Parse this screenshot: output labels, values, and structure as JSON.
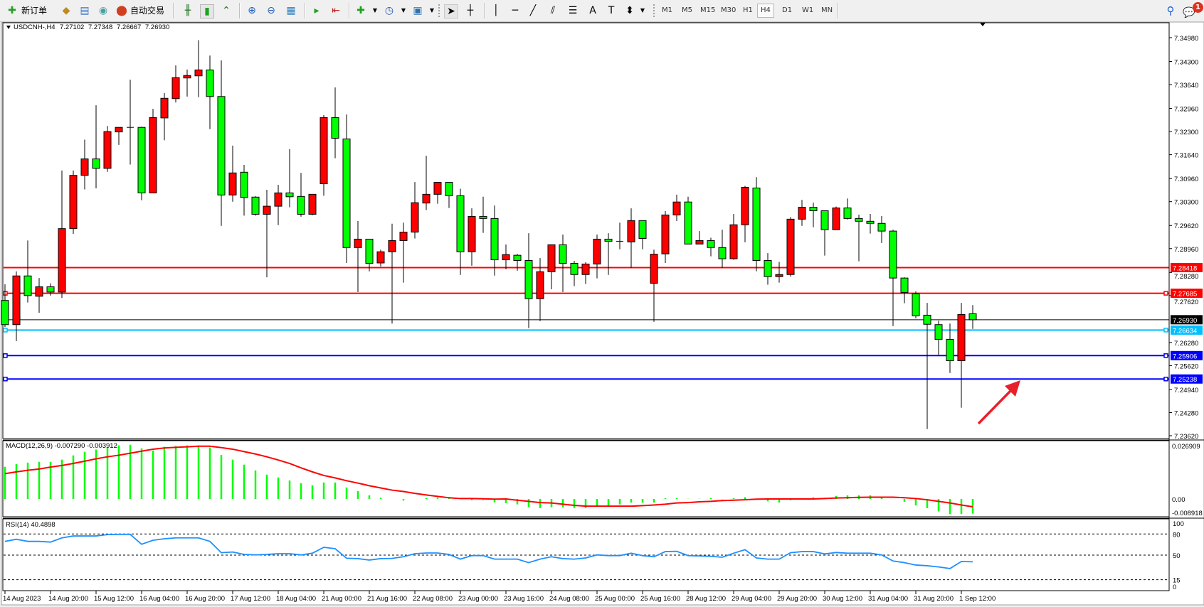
{
  "toolbar": {
    "new_order": "新订单",
    "auto_trading": "自动交易",
    "timeframes": [
      "M1",
      "M5",
      "M15",
      "M30",
      "H1",
      "H4",
      "D1",
      "W1",
      "MN"
    ],
    "active_timeframe": "H4",
    "notification_count": "1",
    "icons": [
      "new-order-icon",
      "market-watch-icon",
      "navigator-icon",
      "signals-icon",
      "auto-trading-icon",
      "bar-chart-icon",
      "candlestick-icon",
      "line-chart-icon",
      "zoom-in-icon",
      "zoom-out-icon",
      "tile-windows-icon",
      "auto-scroll-icon",
      "chart-shift-icon",
      "indicators-icon",
      "periods-icon",
      "templates-icon",
      "cursor-icon",
      "crosshair-icon",
      "vertical-line-icon",
      "horizontal-line-icon",
      "trendline-icon",
      "equidistant-channel-icon",
      "fibonacci-icon",
      "text-icon",
      "text-label-icon",
      "arrows-icon",
      "search-icon",
      "notification-icon"
    ]
  },
  "chart": {
    "symbol": "USDCNH-,H4",
    "open": "7.27102",
    "high": "7.27348",
    "low": "7.26667",
    "close": "7.26930"
  },
  "chart_data": {
    "type": "candlestick",
    "colors": {
      "bull": "#ff0000",
      "bear": "#00ff00",
      "wick": "#000000",
      "macd_histogram": "#00ff00",
      "macd_signal": "#ff0000",
      "rsi": "#1e90ff",
      "arrow": "#e8202a"
    },
    "price_axis": {
      "max": 7.3498,
      "min": 7.2362,
      "ticks": [
        "7.34980",
        "7.34300",
        "7.33640",
        "7.32960",
        "7.32300",
        "7.31640",
        "7.30960",
        "7.30300",
        "7.29620",
        "7.28960",
        "7.28280",
        "7.27620",
        "7.26280",
        "7.25620",
        "7.24940",
        "7.24280",
        "7.23620"
      ]
    },
    "time_axis_labels": [
      "14 Aug 2023",
      "14 Aug 20:00",
      "15 Aug 12:00",
      "16 Aug 04:00",
      "16 Aug 20:00",
      "17 Aug 12:00",
      "18 Aug 04:00",
      "21 Aug 00:00",
      "21 Aug 16:00",
      "22 Aug 08:00",
      "23 Aug 00:00",
      "23 Aug 16:00",
      "24 Aug 08:00",
      "25 Aug 00:00",
      "25 Aug 16:00",
      "28 Aug 12:00",
      "29 Aug 04:00",
      "29 Aug 20:00",
      "30 Aug 12:00",
      "31 Aug 04:00",
      "31 Aug 20:00",
      "1 Sep 12:00"
    ],
    "horizontal_lines": [
      {
        "price": "7.28418",
        "color": "#ff0000",
        "label_color": "#ffffff"
      },
      {
        "price": "7.27685",
        "color": "#ff0000",
        "label_color": "#ffffff"
      },
      {
        "price": "7.26930",
        "color": "#000000",
        "label_color": "#ffffff"
      },
      {
        "price": "7.26634",
        "color": "#00bfff",
        "label_color": "#ffffff"
      },
      {
        "price": "7.25906",
        "color": "#0000ff",
        "label_color": "#ffffff"
      },
      {
        "price": "7.25238",
        "color": "#0000ff",
        "label_color": "#ffffff"
      }
    ],
    "candles_ohlc": [
      [
        7.2748,
        7.2794,
        7.2672,
        7.2679
      ],
      [
        7.2679,
        7.2831,
        7.2632,
        7.2818
      ],
      [
        7.2818,
        7.2919,
        7.2742,
        7.2762
      ],
      [
        7.276,
        7.2812,
        7.2713,
        7.2787
      ],
      [
        7.2787,
        7.2797,
        7.2762,
        7.2772
      ],
      [
        7.2772,
        7.3119,
        7.2755,
        7.2953
      ],
      [
        7.2953,
        7.3119,
        7.2938,
        7.3105
      ],
      [
        7.3105,
        7.3207,
        7.3065,
        7.3152
      ],
      [
        7.3152,
        7.3305,
        7.3068,
        7.3125
      ],
      [
        7.3125,
        7.3246,
        7.3115,
        7.323
      ],
      [
        7.3229,
        7.3242,
        7.3192,
        7.3242
      ],
      [
        7.3242,
        7.3378,
        7.3136,
        7.3242
      ],
      [
        7.3242,
        7.3244,
        7.3034,
        7.3055
      ],
      [
        7.3055,
        7.3295,
        7.3055,
        7.327
      ],
      [
        7.3269,
        7.334,
        7.3205,
        7.3325
      ],
      [
        7.3324,
        7.3419,
        7.3313,
        7.3384
      ],
      [
        7.3383,
        7.3407,
        7.333,
        7.339
      ],
      [
        7.3389,
        7.3491,
        7.3328,
        7.3406
      ],
      [
        7.3406,
        7.3447,
        7.3237,
        7.333
      ],
      [
        7.333,
        7.3433,
        7.2961,
        7.3049
      ],
      [
        7.3049,
        7.319,
        7.303,
        7.3112
      ],
      [
        7.3114,
        7.3135,
        7.299,
        7.3042
      ],
      [
        7.3043,
        7.3046,
        7.299,
        7.2994
      ],
      [
        7.2994,
        7.3064,
        7.2814,
        7.3017
      ],
      [
        7.3017,
        7.3078,
        7.2963,
        7.3055
      ],
      [
        7.3055,
        7.318,
        7.3014,
        7.3044
      ],
      [
        7.3045,
        7.3112,
        7.2987,
        7.2994
      ],
      [
        7.2994,
        7.3051,
        7.2991,
        7.3051
      ],
      [
        7.3081,
        7.3277,
        7.3047,
        7.327
      ],
      [
        7.327,
        7.3356,
        7.3154,
        7.3211
      ],
      [
        7.3209,
        7.3279,
        7.2855,
        7.2899
      ],
      [
        7.2899,
        7.2975,
        7.2772,
        7.2923
      ],
      [
        7.2923,
        7.2923,
        7.2831,
        7.2854
      ],
      [
        7.2855,
        7.2893,
        7.2845,
        7.2887
      ],
      [
        7.2887,
        7.2967,
        7.2682,
        7.2919
      ],
      [
        7.2919,
        7.297,
        7.2799,
        7.2943
      ],
      [
        7.2943,
        7.3086,
        7.2925,
        7.3027
      ],
      [
        7.3026,
        7.3161,
        7.3006,
        7.3051
      ],
      [
        7.3051,
        7.3085,
        7.3024,
        7.3085
      ],
      [
        7.3085,
        7.3085,
        7.3012,
        7.3047
      ],
      [
        7.3047,
        7.3067,
        7.2821,
        7.2887
      ],
      [
        7.2887,
        7.3011,
        7.2847,
        7.2988
      ],
      [
        7.2988,
        7.3044,
        7.2941,
        7.2982
      ],
      [
        7.2982,
        7.3019,
        7.2819,
        7.2864
      ],
      [
        7.2864,
        7.2908,
        7.2837,
        7.2879
      ],
      [
        7.2877,
        7.2881,
        7.2833,
        7.2862
      ],
      [
        7.2862,
        7.294,
        7.2669,
        7.2753
      ],
      [
        7.2753,
        7.2869,
        7.2689,
        7.283
      ],
      [
        7.283,
        7.2907,
        7.278,
        7.2907
      ],
      [
        7.2907,
        7.2936,
        7.2772,
        7.2854
      ],
      [
        7.2854,
        7.2861,
        7.2789,
        7.2822
      ],
      [
        7.2822,
        7.2857,
        7.2795,
        7.2852
      ],
      [
        7.2852,
        7.2936,
        7.2811,
        7.2923
      ],
      [
        7.2923,
        7.294,
        7.2821,
        7.2917
      ],
      [
        7.2917,
        7.297,
        7.2894,
        7.2917
      ],
      [
        7.2915,
        7.3011,
        7.2841,
        7.2976
      ],
      [
        7.2976,
        7.2976,
        7.2894,
        7.2925
      ],
      [
        7.2797,
        7.2893,
        7.2687,
        7.288
      ],
      [
        7.2881,
        7.3003,
        7.2855,
        7.2992
      ],
      [
        7.2992,
        7.305,
        7.2975,
        7.3029
      ],
      [
        7.3029,
        7.3044,
        7.2909,
        7.2909
      ],
      [
        7.2909,
        7.2946,
        7.2909,
        7.2919
      ],
      [
        7.2919,
        7.2927,
        7.2874,
        7.2899
      ],
      [
        7.2899,
        7.295,
        7.2841,
        7.2867
      ],
      [
        7.2867,
        7.2995,
        7.2864,
        7.2964
      ],
      [
        7.2964,
        7.3075,
        7.2914,
        7.3071
      ],
      [
        7.3069,
        7.31,
        7.2831,
        7.2862
      ],
      [
        7.2862,
        7.2883,
        7.2793,
        7.2816
      ],
      [
        7.2816,
        7.2858,
        7.2799,
        7.2822
      ],
      [
        7.2822,
        7.2986,
        7.2816,
        7.298
      ],
      [
        7.298,
        7.3035,
        7.2961,
        7.3014
      ],
      [
        7.3014,
        7.3027,
        7.2957,
        7.3004
      ],
      [
        7.3004,
        7.3004,
        7.2876,
        7.295
      ],
      [
        7.295,
        7.3016,
        7.295,
        7.3012
      ],
      [
        7.3012,
        7.3039,
        7.2979,
        7.2982
      ],
      [
        7.2982,
        7.2993,
        7.286,
        7.2974
      ],
      [
        7.2974,
        7.2995,
        7.2939,
        7.2968
      ],
      [
        7.2968,
        7.2989,
        7.2912,
        7.2946
      ],
      [
        7.2946,
        7.295,
        7.2675,
        7.2812
      ],
      [
        7.2812,
        7.2814,
        7.274,
        7.2771
      ],
      [
        7.2767,
        7.2774,
        7.2697,
        7.2704
      ],
      [
        7.2706,
        7.2741,
        7.2381,
        7.268
      ],
      [
        7.2679,
        7.269,
        7.2593,
        7.2637
      ],
      [
        7.2637,
        7.2682,
        7.2541,
        7.2576
      ],
      [
        7.2576,
        7.2741,
        7.2442,
        7.2708
      ],
      [
        7.27102,
        7.27348,
        7.26667,
        7.2693
      ]
    ],
    "macd": {
      "label": "MACD(12,26,9) -0.007290 -0.003912",
      "max": 0.026909,
      "min": -0.008918,
      "axis_labels": [
        "0.026909",
        "0.00",
        "-0.008918"
      ],
      "histogram": [
        0.016,
        0.0174,
        0.0181,
        0.0185,
        0.0185,
        0.0196,
        0.0217,
        0.0235,
        0.0246,
        0.0258,
        0.0267,
        0.027,
        0.0252,
        0.0241,
        0.026,
        0.0264,
        0.0267,
        0.0267,
        0.0256,
        0.0219,
        0.0196,
        0.0171,
        0.0142,
        0.0121,
        0.0107,
        0.0092,
        0.0078,
        0.0068,
        0.0082,
        0.0082,
        0.0057,
        0.0039,
        0.0018,
        0.0006,
        0.0,
        -0.0008,
        0.0,
        0.0004,
        0.0007,
        0.0004,
        0.0004,
        -0.0005,
        -0.0005,
        -0.0017,
        -0.0021,
        -0.0027,
        -0.0041,
        -0.0045,
        -0.0041,
        -0.0041,
        -0.0045,
        -0.0045,
        -0.0033,
        -0.0033,
        -0.0027,
        -0.0018,
        -0.0018,
        -0.0018,
        0.0004,
        0.0004,
        0.0001,
        0.0001,
        0.0004,
        -0.0001,
        0.0004,
        0.0009,
        0.0,
        -0.0012,
        -0.0018,
        -0.0006,
        0.0,
        0.0008,
        0.0006,
        0.0015,
        0.0018,
        0.0018,
        0.0018,
        0.0012,
        0.0,
        -0.0014,
        -0.0032,
        -0.0046,
        -0.0062,
        -0.0075,
        -0.0075,
        -0.0073
      ],
      "signal": [
        0.0126,
        0.0135,
        0.0143,
        0.0149,
        0.0159,
        0.0167,
        0.0177,
        0.0188,
        0.02,
        0.021,
        0.0218,
        0.0228,
        0.0238,
        0.0248,
        0.0254,
        0.0257,
        0.026,
        0.0263,
        0.0263,
        0.0256,
        0.0248,
        0.0236,
        0.0224,
        0.021,
        0.0194,
        0.0177,
        0.0155,
        0.0135,
        0.0117,
        0.0105,
        0.0091,
        0.0079,
        0.0066,
        0.0055,
        0.0044,
        0.0037,
        0.0028,
        0.002,
        0.0013,
        0.0006,
        0.0002,
        0.0002,
        0.0001,
        -0.0001,
        0.0,
        -0.0006,
        -0.0012,
        -0.0018,
        -0.002,
        -0.0026,
        -0.0032,
        -0.0036,
        -0.0036,
        -0.0036,
        -0.0036,
        -0.0036,
        -0.0033,
        -0.003,
        -0.0026,
        -0.002,
        -0.0018,
        -0.0014,
        -0.0012,
        -0.0008,
        -0.0006,
        -0.0004,
        -0.0001,
        0,
        0,
        0,
        0,
        0,
        0.0002,
        0.0005,
        0.0006,
        0.0008,
        0.0009,
        0.0009,
        0.0009,
        0.0006,
        0.0002,
        -0.0004,
        -0.0012,
        -0.002,
        -0.003,
        -0.0039
      ]
    },
    "rsi": {
      "label": "RSI(14) 40.4898",
      "max": 100,
      "min": 0,
      "levels": [
        80,
        50,
        15
      ],
      "axis_labels": [
        "100",
        "80",
        "50",
        "15",
        "0"
      ],
      "values": [
        69.5,
        72.5,
        69.5,
        69.5,
        68.5,
        74.5,
        77.2,
        77.2,
        77.2,
        79.2,
        79.5,
        79.5,
        65.4,
        71.1,
        73.2,
        74.5,
        74.5,
        74.5,
        69.5,
        53.4,
        54.4,
        51.0,
        50.3,
        51.0,
        52.0,
        52.0,
        50.3,
        52.7,
        61.1,
        59.1,
        45.6,
        45.0,
        43.0,
        45.0,
        45.3,
        47.7,
        52.0,
        53.0,
        53.0,
        51.0,
        44.3,
        49.3,
        49.3,
        44.3,
        44.3,
        44.3,
        39.3,
        44.3,
        47.7,
        45.0,
        44.3,
        46.0,
        50.3,
        49.3,
        49.3,
        52.7,
        49.3,
        47.7,
        55.0,
        55.4,
        49.3,
        48.7,
        48.3,
        47.0,
        52.7,
        57.7,
        46.0,
        44.3,
        44.3,
        53.4,
        55.0,
        55.0,
        51.7,
        53.7,
        52.7,
        52.7,
        52.7,
        50.3,
        41.6,
        39.3,
        35.9,
        34.9,
        33.2,
        30.9,
        40.9,
        40.5
      ]
    }
  }
}
